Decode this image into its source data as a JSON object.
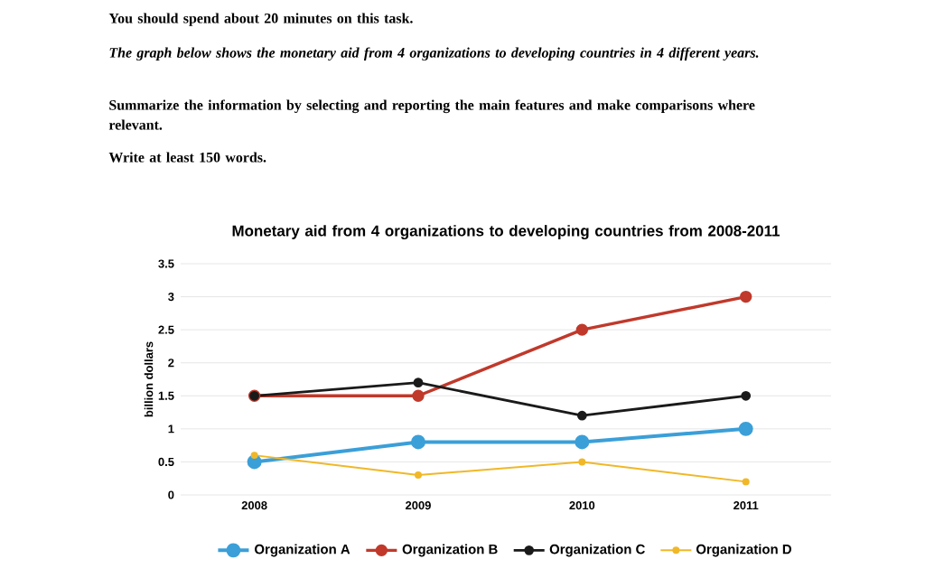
{
  "chart_data": {
    "type": "line",
    "title": "Monetary aid from 4 organizations to developing countries from 2008-2011",
    "annotations": [
      "You should spend about 20 minutes on this task.",
      "The graph below shows the monetary aid from 4 organizations to developing countries in 4 different years.",
      "Summarize the information by selecting and reporting the main features and make comparisons where relevant.",
      "Write at least 150 words."
    ],
    "ylabel": "billion dollars",
    "categories": [
      "2008",
      "2009",
      "2010",
      "2011"
    ],
    "series": [
      {
        "name": "Organization A",
        "color": "#3b9fd8",
        "values": [
          0.5,
          0.8,
          0.8,
          1.0
        ]
      },
      {
        "name": "Organization B",
        "color": "#c0392b",
        "values": [
          1.5,
          1.5,
          2.5,
          3.0
        ]
      },
      {
        "name": "Organization C",
        "color": "#1a1a1a",
        "values": [
          1.5,
          1.7,
          1.2,
          1.5
        ]
      },
      {
        "name": "Organization D",
        "color": "#f0b828",
        "values": [
          0.6,
          0.3,
          0.5,
          0.2
        ]
      }
    ],
    "ylim": [
      0,
      3.5
    ],
    "yticks": [
      0,
      0.5,
      1,
      1.5,
      2,
      2.5,
      3,
      3.5
    ],
    "grid": "y",
    "legend": "bottom",
    "marker": "circle",
    "line_style": "solid"
  }
}
